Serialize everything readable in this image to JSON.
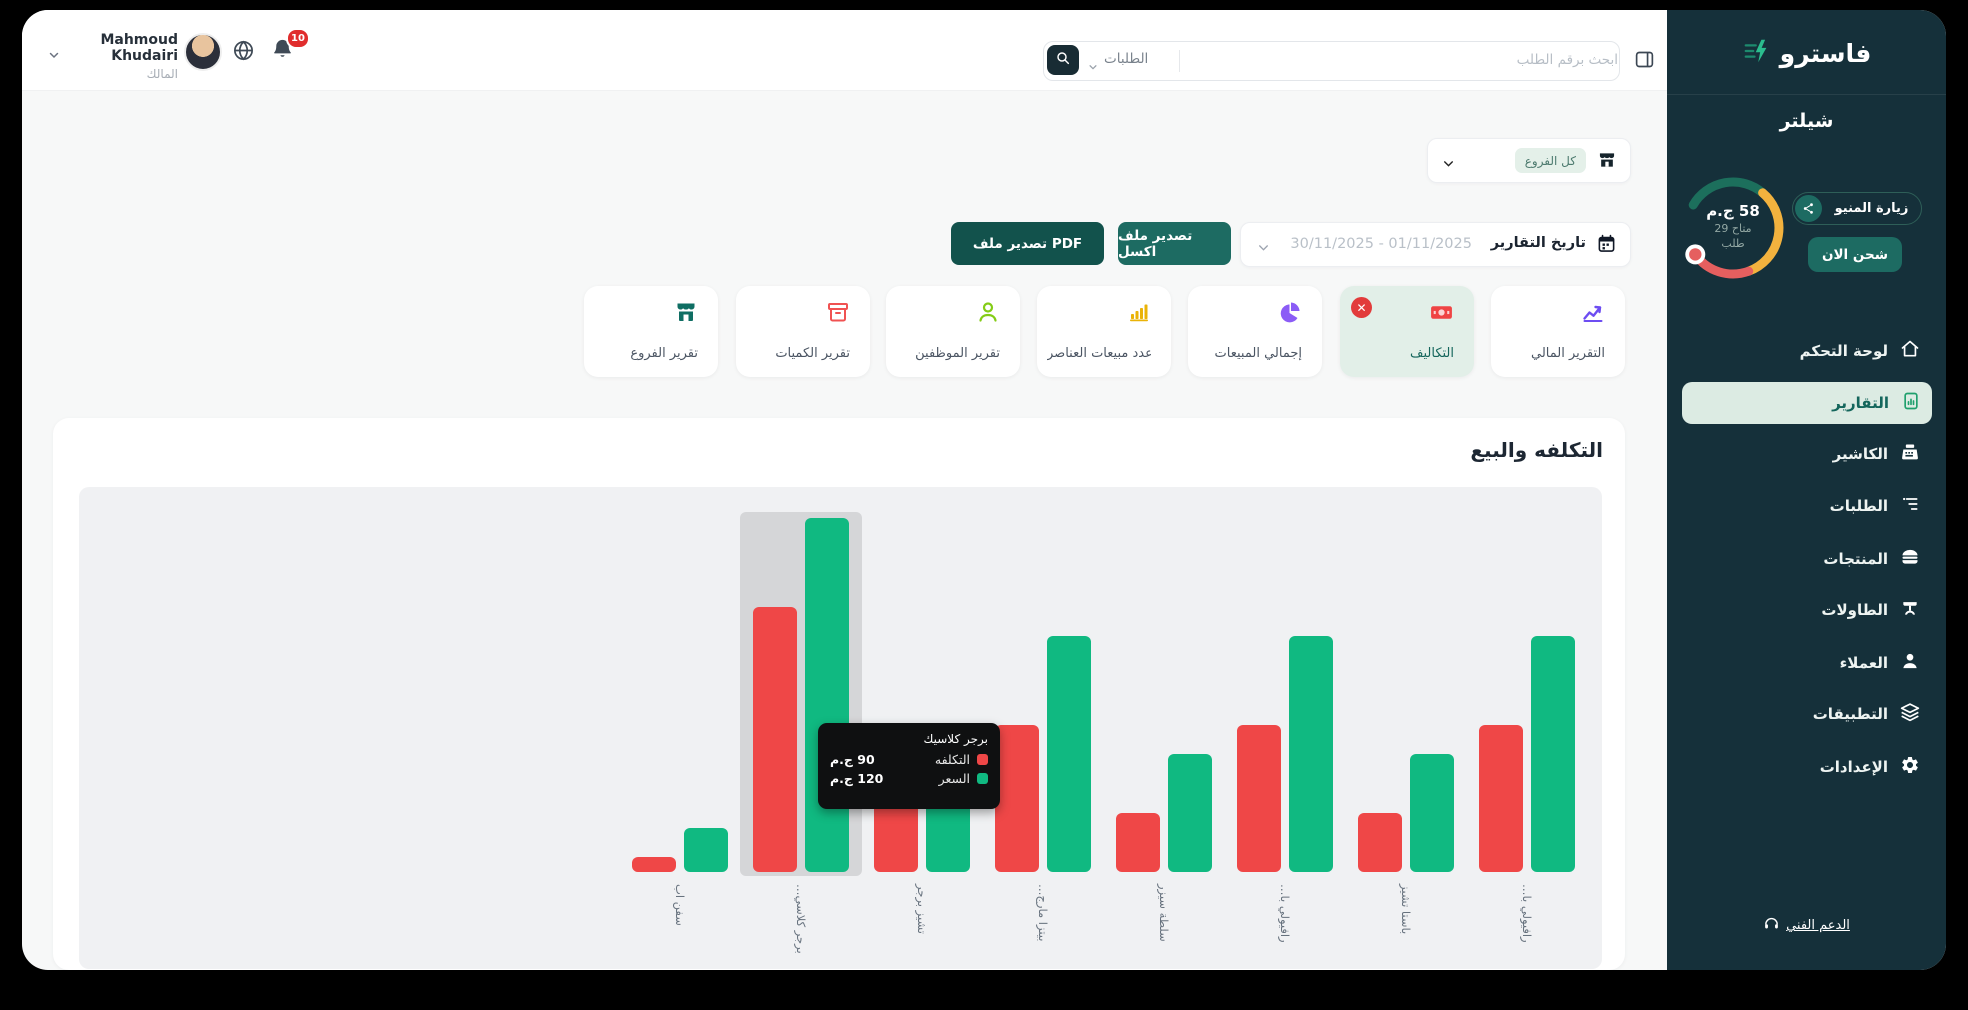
{
  "topbar": {
    "user": {
      "name": "Mahmoud Khudairi",
      "role": "المالك",
      "notification_count": "10"
    },
    "search": {
      "category": "الطلبات",
      "placeholder": "ابحث برقم الطلب"
    }
  },
  "sidebar": {
    "brand": "فاسترو",
    "store_name": "شيلتر",
    "wallet": {
      "balance": "58 ج.م",
      "available": "متاح 29",
      "unit": "طلب",
      "visit_menu_label": "زيارة المنيو",
      "charge_label": "شحن الان"
    },
    "nav": [
      {
        "label": "لوحة التحكم",
        "icon": "home-icon",
        "active": false
      },
      {
        "label": "التقارير",
        "icon": "report-doc-icon",
        "active": true
      },
      {
        "label": "الكاشير",
        "icon": "cash-register-icon",
        "active": false
      },
      {
        "label": "الطلبات",
        "icon": "orders-list-icon",
        "active": false
      },
      {
        "label": "المنتجات",
        "icon": "burger-icon",
        "active": false
      },
      {
        "label": "الطاولات",
        "icon": "table-icon",
        "active": false
      },
      {
        "label": "العملاء",
        "icon": "person-icon",
        "active": false
      },
      {
        "label": "التطبيقات",
        "icon": "layers-icon",
        "active": false
      },
      {
        "label": "الإعدادات",
        "icon": "gear-icon",
        "active": false
      }
    ],
    "support_label": "الدعم الفني"
  },
  "filters": {
    "branch_filter": "كل الفروع",
    "date_label": "تاريخ التقارير",
    "date_range": "30/11/2025 - 01/11/2025",
    "export_excel": "تصدير ملف اكسل",
    "export_pdf": "تصدير ملف PDF"
  },
  "report_tabs": [
    {
      "label": "التقرير المالي",
      "icon": "line-chart-icon",
      "color": "#6d4df2",
      "active": false
    },
    {
      "label": "التكاليف",
      "icon": "banknote-icon",
      "color": "#ef4444",
      "active": true,
      "badge": "x"
    },
    {
      "label": "إجمالي المبيعات",
      "icon": "pie-chart-icon",
      "color": "#8b5cf6",
      "active": false
    },
    {
      "label": "عدد مبيعات العناصر",
      "icon": "bar-chart-icon",
      "color": "#eab308",
      "active": false
    },
    {
      "label": "تقرير الموظفين",
      "icon": "person-outline-icon",
      "color": "#84cc16",
      "active": false
    },
    {
      "label": "تقرير الكميات",
      "icon": "archive-box-icon",
      "color": "#f05252",
      "active": false
    },
    {
      "label": "تقرير الفروع",
      "icon": "store-icon",
      "color": "#0f6e63",
      "active": false
    }
  ],
  "chart_data": {
    "type": "bar",
    "title": "التكلفه والبيع",
    "categories": [
      "سفن اب",
      "برجر كلاسي…",
      "تشيز برجر",
      "بيتزا مارج…",
      "سلطة سيزر",
      "رافيولي با…",
      "باستا تشيز",
      "رافيولي با…"
    ],
    "series": [
      {
        "name": "التكلفه",
        "color": "#ef4747",
        "values": [
          5,
          90,
          35,
          50,
          20,
          50,
          20,
          50
        ]
      },
      {
        "name": "السعر",
        "color": "#10b981",
        "values": [
          15,
          120,
          45,
          80,
          40,
          80,
          40,
          80
        ]
      }
    ],
    "unit": "ج.م",
    "ylim": [
      0,
      130
    ],
    "grid": false,
    "legend_position": "none",
    "hover_index": 1,
    "tooltip": {
      "title": "برجر كلاسيك",
      "rows": [
        {
          "label": "التكلفه",
          "value": "90 ج.م",
          "color": "#ef4747"
        },
        {
          "label": "السعر",
          "value": "120 ج.م",
          "color": "#10b981"
        }
      ]
    }
  },
  "colors": {
    "sidebar_bg": "#15303a",
    "accent_teal": "#1d6b62",
    "active_pill_bg": "#dcebe3",
    "cost_red": "#ef4747",
    "price_green": "#10b981",
    "gauge_green": "#1c6f5c",
    "gauge_yellow": "#f2b23e",
    "gauge_red": "#e55f5f",
    "badge_red": "#e02d2d"
  }
}
